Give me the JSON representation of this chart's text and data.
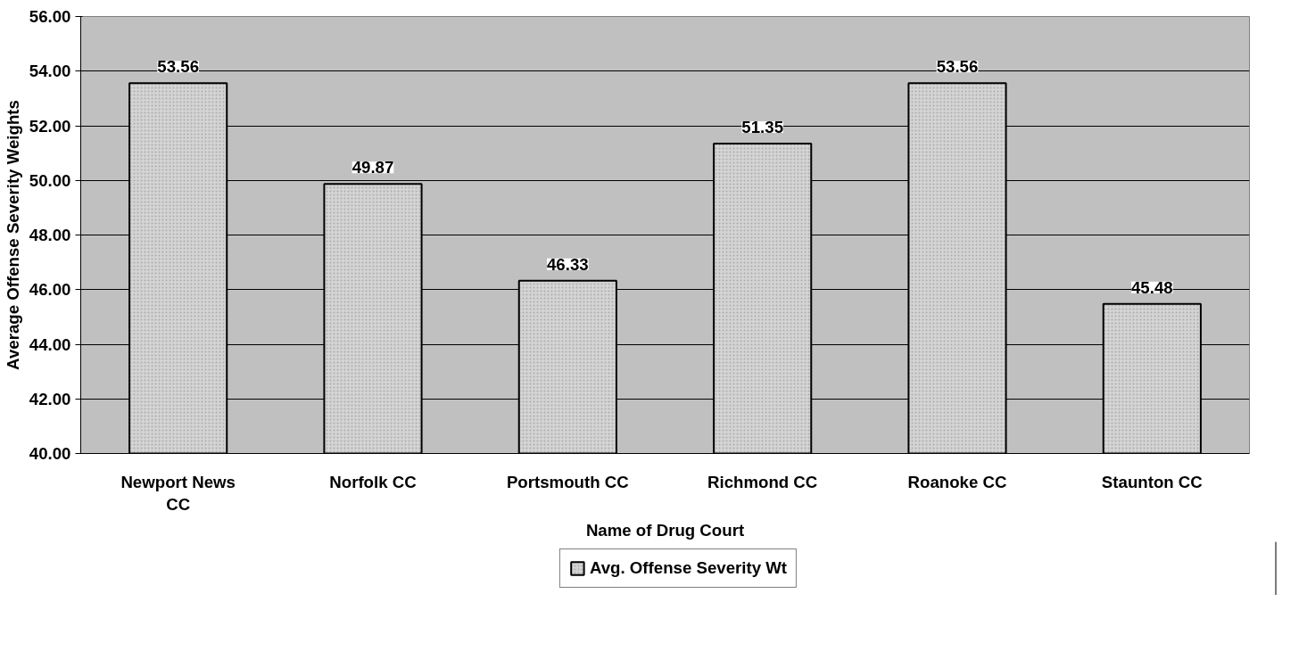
{
  "chart_data": {
    "type": "bar",
    "xlabel": "Name of Drug Court",
    "ylabel": "Average Offense Severity Weights",
    "categories": [
      "Newport News CC",
      "Norfolk CC",
      "Portsmouth CC",
      "Richmond CC",
      "Roanoke CC",
      "Staunton CC"
    ],
    "series": [
      {
        "name": "Avg. Offense Severity Wt",
        "color": "#d4d4d4",
        "values": [
          53.56,
          49.87,
          46.33,
          51.35,
          53.56,
          45.48
        ]
      }
    ],
    "ylim": [
      40,
      56
    ],
    "yticks": [
      {
        "value": 40,
        "label": "40.00"
      },
      {
        "value": 42,
        "label": "42.00"
      },
      {
        "value": 44,
        "label": "44.00"
      },
      {
        "value": 46,
        "label": "46.00"
      },
      {
        "value": 48,
        "label": "48.00"
      },
      {
        "value": 50,
        "label": "50.00"
      },
      {
        "value": 52,
        "label": "52.00"
      },
      {
        "value": 54,
        "label": "54.00"
      },
      {
        "value": 56,
        "label": "56.00"
      }
    ],
    "grid": "y",
    "legend": "bottom",
    "data_labels": true
  }
}
